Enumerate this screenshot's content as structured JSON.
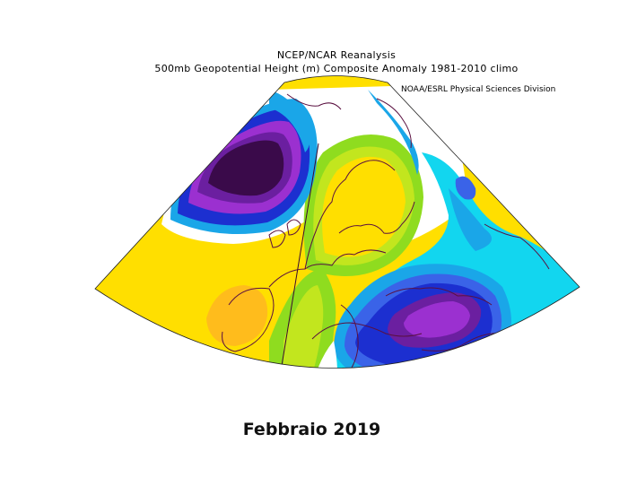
{
  "header": {
    "line1": "NCEP/NCAR Reanalysis",
    "line2": "500mb Geopotential Height (m) Composite Anomaly 1981-2010 climo",
    "credit": "NOAA/ESRL Physical Sciences Division"
  },
  "caption": "Febbraio 2019",
  "map": {
    "variable": "500mb geopotential height anomaly",
    "region": "Europe / North Atlantic",
    "colors": {
      "strong_negative": "#3a0a4a",
      "negative_purple": "#6b1fa0",
      "negative_violet": "#9b30d0",
      "negative_blue": "#1c2fd0",
      "negative_mid_blue": "#3a63e8",
      "negative_light_blue": "#1aa6e8",
      "negative_cyan": "#12d6ef",
      "neutral": "#ffffff",
      "positive_green": "#8fdc1f",
      "positive_lime": "#c2e61e",
      "positive_yellow": "#ffdf00",
      "positive_orange": "#ffbc1c",
      "coastline": "#5a1040"
    }
  }
}
